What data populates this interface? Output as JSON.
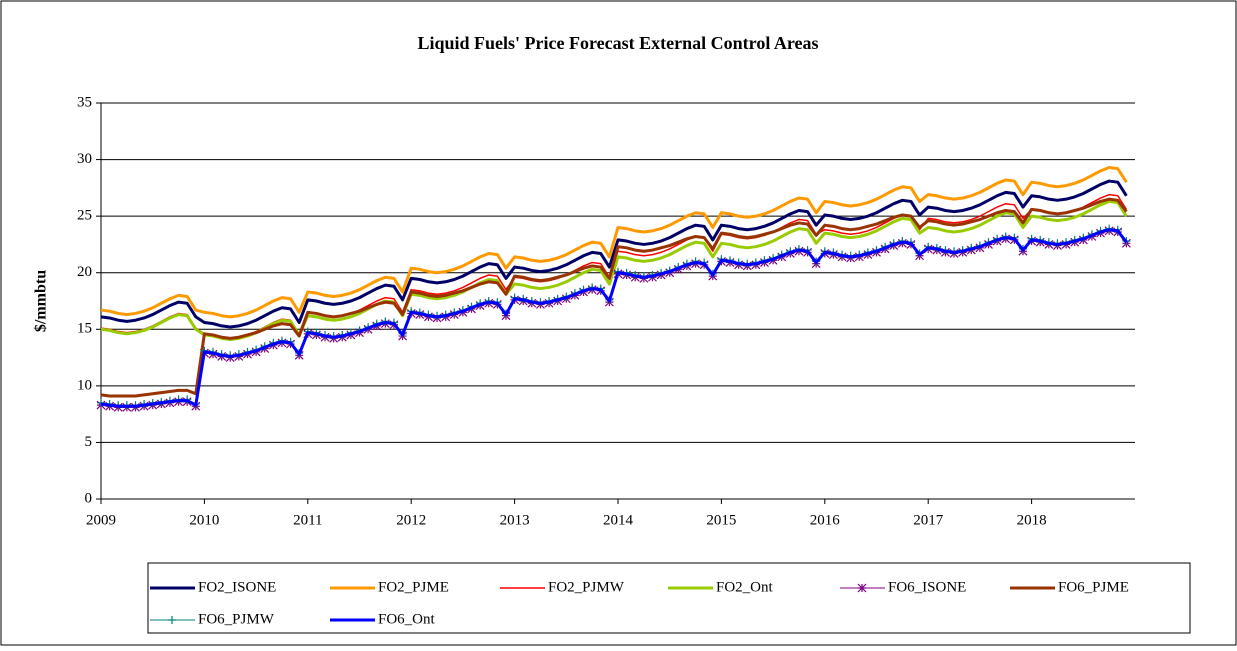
{
  "chart_data": {
    "type": "line",
    "title": "Liquid Fuels' Price Forecast External Control Areas",
    "y_label": "$/mmbtu",
    "ylim": [
      0,
      35
    ],
    "yticks": [
      0,
      5,
      10,
      15,
      20,
      25,
      30,
      35
    ],
    "grid": true,
    "legend": "bottom",
    "categories": [
      "2009",
      null,
      null,
      null,
      null,
      null,
      null,
      null,
      null,
      null,
      null,
      null,
      "2010",
      null,
      null,
      null,
      null,
      null,
      null,
      null,
      null,
      null,
      null,
      null,
      "2011",
      null,
      null,
      null,
      null,
      null,
      null,
      null,
      null,
      null,
      null,
      null,
      "2012",
      null,
      null,
      null,
      null,
      null,
      null,
      null,
      null,
      null,
      null,
      null,
      "2013",
      null,
      null,
      null,
      null,
      null,
      null,
      null,
      null,
      null,
      null,
      null,
      "2014",
      null,
      null,
      null,
      null,
      null,
      null,
      null,
      null,
      null,
      null,
      null,
      "2015",
      null,
      null,
      null,
      null,
      null,
      null,
      null,
      null,
      null,
      null,
      null,
      "2016",
      null,
      null,
      null,
      null,
      null,
      null,
      null,
      null,
      null,
      null,
      null,
      "2017",
      null,
      null,
      null,
      null,
      null,
      null,
      null,
      null,
      null,
      null,
      null,
      "2018",
      null,
      null,
      null,
      null,
      null,
      null,
      null,
      null,
      null,
      null,
      null
    ],
    "series": [
      {
        "name": "FO2_ISONE",
        "color": "#000066",
        "width": 3,
        "values": [
          16.1,
          16.0,
          15.8,
          15.7,
          15.8,
          16.0,
          16.3,
          16.7,
          17.1,
          17.4,
          17.3,
          16.1,
          15.6,
          15.5,
          15.3,
          15.2,
          15.3,
          15.5,
          15.8,
          16.2,
          16.6,
          16.9,
          16.8,
          15.6,
          17.6,
          17.5,
          17.3,
          17.2,
          17.3,
          17.5,
          17.8,
          18.2,
          18.6,
          18.9,
          18.8,
          17.6,
          19.5,
          19.4,
          19.2,
          19.1,
          19.2,
          19.4,
          19.7,
          20.1,
          20.5,
          20.8,
          20.7,
          19.5,
          20.5,
          20.4,
          20.2,
          20.1,
          20.2,
          20.4,
          20.7,
          21.1,
          21.5,
          21.8,
          21.7,
          20.5,
          22.9,
          22.8,
          22.6,
          22.5,
          22.6,
          22.8,
          23.1,
          23.5,
          23.9,
          24.2,
          24.1,
          22.9,
          24.2,
          24.1,
          23.9,
          23.8,
          23.9,
          24.1,
          24.4,
          24.8,
          25.2,
          25.5,
          25.4,
          24.2,
          25.1,
          25.0,
          24.8,
          24.7,
          24.8,
          25.0,
          25.3,
          25.7,
          26.1,
          26.4,
          26.3,
          25.1,
          25.8,
          25.7,
          25.5,
          25.4,
          25.5,
          25.7,
          26.0,
          26.4,
          26.8,
          27.1,
          27.0,
          25.8,
          26.8,
          26.7,
          26.5,
          26.4,
          26.5,
          26.7,
          27.0,
          27.4,
          27.8,
          28.1,
          28.0,
          26.8
        ]
      },
      {
        "name": "FO2_PJME",
        "color": "#ff9900",
        "width": 3,
        "values": [
          16.7,
          16.6,
          16.4,
          16.3,
          16.4,
          16.6,
          16.9,
          17.3,
          17.7,
          18.0,
          17.9,
          16.7,
          16.5,
          16.4,
          16.2,
          16.1,
          16.2,
          16.4,
          16.7,
          17.1,
          17.5,
          17.8,
          17.7,
          16.5,
          18.3,
          18.2,
          18.0,
          17.9,
          18.0,
          18.2,
          18.5,
          18.9,
          19.3,
          19.6,
          19.5,
          18.3,
          20.4,
          20.3,
          20.1,
          20.0,
          20.1,
          20.3,
          20.6,
          21.0,
          21.4,
          21.7,
          21.6,
          20.4,
          21.4,
          21.3,
          21.1,
          21.0,
          21.1,
          21.3,
          21.6,
          22.0,
          22.4,
          22.7,
          22.6,
          21.4,
          24.0,
          23.9,
          23.7,
          23.6,
          23.7,
          23.9,
          24.2,
          24.6,
          25.0,
          25.3,
          25.2,
          24.0,
          25.3,
          25.2,
          25.0,
          24.9,
          25.0,
          25.2,
          25.5,
          25.9,
          26.3,
          26.6,
          26.5,
          25.3,
          26.3,
          26.2,
          26.0,
          25.9,
          26.0,
          26.2,
          26.5,
          26.9,
          27.3,
          27.6,
          27.5,
          26.3,
          26.9,
          26.8,
          26.6,
          26.5,
          26.6,
          26.8,
          27.1,
          27.5,
          27.9,
          28.2,
          28.1,
          26.9,
          28.0,
          27.9,
          27.7,
          27.6,
          27.7,
          27.9,
          28.2,
          28.6,
          29.0,
          29.3,
          29.2,
          28.0
        ]
      },
      {
        "name": "FO2_PJMW",
        "color": "#ff0000",
        "width": 1.5,
        "values": [
          15.1,
          15.0,
          14.8,
          14.7,
          14.8,
          15.0,
          15.3,
          15.7,
          16.1,
          16.4,
          16.3,
          15.1,
          14.6,
          14.5,
          14.3,
          14.2,
          14.3,
          14.5,
          14.8,
          15.2,
          15.6,
          15.9,
          15.8,
          14.6,
          16.5,
          16.4,
          16.2,
          16.1,
          16.2,
          16.4,
          16.7,
          17.1,
          17.5,
          17.8,
          17.7,
          16.5,
          18.5,
          18.4,
          18.2,
          18.1,
          18.2,
          18.4,
          18.7,
          19.1,
          19.5,
          19.8,
          19.7,
          18.5,
          19.6,
          19.5,
          19.3,
          19.2,
          19.3,
          19.5,
          19.8,
          20.2,
          20.6,
          20.9,
          20.8,
          19.6,
          21.9,
          21.8,
          21.6,
          21.5,
          21.6,
          21.8,
          22.1,
          22.5,
          22.9,
          23.2,
          23.1,
          21.9,
          23.4,
          23.3,
          23.1,
          23.0,
          23.1,
          23.3,
          23.6,
          24.0,
          24.4,
          24.7,
          24.6,
          23.4,
          23.8,
          23.7,
          23.5,
          23.4,
          23.5,
          23.7,
          24.0,
          24.4,
          24.8,
          25.1,
          25.0,
          23.8,
          24.8,
          24.7,
          24.5,
          24.4,
          24.5,
          24.7,
          25.0,
          25.4,
          25.8,
          26.1,
          26.0,
          24.8,
          25.6,
          25.5,
          25.3,
          25.2,
          25.3,
          25.5,
          25.8,
          26.2,
          26.6,
          26.9,
          26.8,
          25.6
        ]
      },
      {
        "name": "FO2_Ont",
        "color": "#99cc00",
        "width": 3,
        "values": [
          15.0,
          14.9,
          14.7,
          14.6,
          14.7,
          14.9,
          15.2,
          15.6,
          16.0,
          16.3,
          16.2,
          15.0,
          14.5,
          14.4,
          14.2,
          14.1,
          14.2,
          14.4,
          14.7,
          15.1,
          15.5,
          15.8,
          15.7,
          14.5,
          16.2,
          16.1,
          15.9,
          15.8,
          15.9,
          16.1,
          16.4,
          16.8,
          17.2,
          17.5,
          17.4,
          16.2,
          18.1,
          18.0,
          17.8,
          17.7,
          17.8,
          18.0,
          18.3,
          18.7,
          19.1,
          19.4,
          19.3,
          18.1,
          19.0,
          18.9,
          18.7,
          18.6,
          18.7,
          18.9,
          19.2,
          19.6,
          20.0,
          20.3,
          20.2,
          19.0,
          21.4,
          21.3,
          21.1,
          21.0,
          21.1,
          21.3,
          21.6,
          22.0,
          22.4,
          22.7,
          22.6,
          21.4,
          22.6,
          22.5,
          22.3,
          22.2,
          22.3,
          22.5,
          22.8,
          23.2,
          23.6,
          23.9,
          23.8,
          22.6,
          23.5,
          23.4,
          23.2,
          23.1,
          23.2,
          23.4,
          23.7,
          24.1,
          24.5,
          24.8,
          24.7,
          23.5,
          24.0,
          23.9,
          23.7,
          23.6,
          23.7,
          23.9,
          24.2,
          24.6,
          25.0,
          25.3,
          25.2,
          24.0,
          25.0,
          24.9,
          24.7,
          24.6,
          24.7,
          24.9,
          25.2,
          25.6,
          26.0,
          26.3,
          26.2,
          25.0
        ]
      },
      {
        "name": "FO6_ISONE",
        "color": "#800080",
        "width": 1,
        "marker": "star",
        "values": [
          8.3,
          8.2,
          8.1,
          8.1,
          8.1,
          8.2,
          8.3,
          8.4,
          8.5,
          8.6,
          8.6,
          8.2,
          12.9,
          12.8,
          12.6,
          12.5,
          12.6,
          12.8,
          13.0,
          13.3,
          13.6,
          13.8,
          13.7,
          12.7,
          14.6,
          14.5,
          14.3,
          14.2,
          14.3,
          14.5,
          14.7,
          15.0,
          15.3,
          15.5,
          15.4,
          14.4,
          16.4,
          16.3,
          16.1,
          16.0,
          16.1,
          16.3,
          16.5,
          16.8,
          17.1,
          17.3,
          17.2,
          16.2,
          17.6,
          17.5,
          17.3,
          17.2,
          17.3,
          17.5,
          17.7,
          18.0,
          18.3,
          18.5,
          18.4,
          17.4,
          19.9,
          19.8,
          19.6,
          19.5,
          19.6,
          19.8,
          20.0,
          20.3,
          20.6,
          20.8,
          20.7,
          19.7,
          21.0,
          20.9,
          20.7,
          20.6,
          20.7,
          20.9,
          21.1,
          21.4,
          21.7,
          21.9,
          21.8,
          20.8,
          21.7,
          21.6,
          21.4,
          21.3,
          21.4,
          21.6,
          21.8,
          22.1,
          22.4,
          22.6,
          22.5,
          21.5,
          22.1,
          22.0,
          21.8,
          21.7,
          21.8,
          22.0,
          22.2,
          22.5,
          22.8,
          23.0,
          22.9,
          21.9,
          22.8,
          22.7,
          22.5,
          22.4,
          22.5,
          22.7,
          22.9,
          23.2,
          23.5,
          23.7,
          23.6,
          22.6
        ]
      },
      {
        "name": "FO6_PJME",
        "color": "#993300",
        "width": 3,
        "values": [
          9.2,
          9.1,
          9.1,
          9.1,
          9.1,
          9.2,
          9.3,
          9.4,
          9.5,
          9.6,
          9.6,
          9.3,
          14.6,
          14.5,
          14.3,
          14.2,
          14.3,
          14.5,
          14.7,
          15.0,
          15.3,
          15.5,
          15.4,
          14.4,
          16.5,
          16.4,
          16.2,
          16.1,
          16.2,
          16.4,
          16.6,
          16.9,
          17.2,
          17.4,
          17.3,
          16.3,
          18.3,
          18.2,
          18.0,
          17.9,
          18.0,
          18.2,
          18.4,
          18.7,
          19.0,
          19.2,
          19.1,
          18.1,
          19.7,
          19.6,
          19.4,
          19.3,
          19.4,
          19.6,
          19.8,
          20.1,
          20.4,
          20.6,
          20.5,
          19.5,
          22.3,
          22.2,
          22.0,
          21.9,
          22.0,
          22.2,
          22.4,
          22.7,
          23.0,
          23.2,
          23.1,
          22.1,
          23.5,
          23.4,
          23.2,
          23.1,
          23.2,
          23.4,
          23.6,
          23.9,
          24.2,
          24.4,
          24.3,
          23.3,
          24.2,
          24.1,
          23.9,
          23.8,
          23.9,
          24.1,
          24.3,
          24.6,
          24.9,
          25.1,
          25.0,
          24.0,
          24.6,
          24.5,
          24.3,
          24.2,
          24.3,
          24.5,
          24.7,
          25.0,
          25.3,
          25.5,
          25.4,
          24.4,
          25.6,
          25.5,
          25.3,
          25.2,
          25.3,
          25.5,
          25.7,
          26.0,
          26.3,
          26.5,
          26.4,
          25.4
        ]
      },
      {
        "name": "FO6_PJMW",
        "color": "#008080",
        "width": 1,
        "marker": "plus",
        "values": [
          8.5,
          8.4,
          8.3,
          8.3,
          8.3,
          8.4,
          8.5,
          8.6,
          8.7,
          8.8,
          8.8,
          8.4,
          13.1,
          13.0,
          12.8,
          12.7,
          12.8,
          13.0,
          13.2,
          13.5,
          13.8,
          14.0,
          13.9,
          12.9,
          14.8,
          14.7,
          14.5,
          14.4,
          14.5,
          14.7,
          14.9,
          15.2,
          15.5,
          15.7,
          15.6,
          14.6,
          16.6,
          16.5,
          16.3,
          16.2,
          16.3,
          16.5,
          16.7,
          17.0,
          17.3,
          17.5,
          17.4,
          16.4,
          17.8,
          17.7,
          17.5,
          17.4,
          17.5,
          17.7,
          17.9,
          18.2,
          18.5,
          18.7,
          18.6,
          17.6,
          20.1,
          20.0,
          19.8,
          19.7,
          19.8,
          20.0,
          20.2,
          20.5,
          20.8,
          21.0,
          20.9,
          19.9,
          21.2,
          21.1,
          20.9,
          20.8,
          20.9,
          21.1,
          21.3,
          21.6,
          21.9,
          22.1,
          22.0,
          21.0,
          21.9,
          21.8,
          21.6,
          21.5,
          21.6,
          21.8,
          22.0,
          22.3,
          22.6,
          22.8,
          22.7,
          21.7,
          22.3,
          22.2,
          22.0,
          21.9,
          22.0,
          22.2,
          22.4,
          22.7,
          23.0,
          23.2,
          23.1,
          22.1,
          23.0,
          22.9,
          22.7,
          22.6,
          22.7,
          22.9,
          23.1,
          23.4,
          23.7,
          23.9,
          23.8,
          22.8
        ]
      },
      {
        "name": "FO6_Ont",
        "color": "#0000ff",
        "width": 3,
        "values": [
          8.4,
          8.3,
          8.2,
          8.2,
          8.2,
          8.3,
          8.4,
          8.5,
          8.6,
          8.7,
          8.7,
          8.3,
          13.0,
          12.9,
          12.7,
          12.6,
          12.7,
          12.9,
          13.1,
          13.4,
          13.7,
          13.9,
          13.8,
          12.8,
          14.7,
          14.6,
          14.4,
          14.3,
          14.4,
          14.6,
          14.8,
          15.1,
          15.4,
          15.6,
          15.5,
          14.5,
          16.5,
          16.4,
          16.2,
          16.1,
          16.2,
          16.4,
          16.6,
          16.9,
          17.2,
          17.4,
          17.3,
          16.3,
          17.7,
          17.6,
          17.4,
          17.3,
          17.4,
          17.6,
          17.8,
          18.1,
          18.4,
          18.6,
          18.5,
          17.5,
          20.0,
          19.9,
          19.7,
          19.6,
          19.7,
          19.9,
          20.1,
          20.4,
          20.7,
          20.9,
          20.8,
          19.8,
          21.1,
          21.0,
          20.8,
          20.7,
          20.8,
          21.0,
          21.2,
          21.5,
          21.8,
          22.0,
          21.9,
          20.9,
          21.8,
          21.7,
          21.5,
          21.4,
          21.5,
          21.7,
          21.9,
          22.2,
          22.5,
          22.7,
          22.6,
          21.6,
          22.2,
          22.1,
          21.9,
          21.8,
          21.9,
          22.1,
          22.3,
          22.6,
          22.9,
          23.1,
          23.0,
          22.0,
          22.9,
          22.8,
          22.6,
          22.5,
          22.6,
          22.8,
          23.0,
          23.3,
          23.6,
          23.8,
          23.7,
          22.7
        ]
      }
    ]
  }
}
